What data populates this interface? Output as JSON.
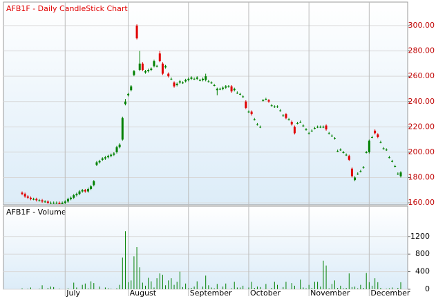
{
  "chart_data": {
    "type": "candlestick",
    "title": "AFB1F - Daily CandleStick Chart",
    "up_color": "#008000",
    "down_color": "#e00000",
    "grid": true,
    "categories": [
      null,
      null,
      null,
      null,
      null,
      null,
      null,
      null,
      null,
      null,
      null,
      null,
      null,
      null,
      null,
      "July",
      null,
      null,
      null,
      null,
      null,
      null,
      null,
      null,
      null,
      null,
      null,
      null,
      null,
      null,
      null,
      null,
      null,
      null,
      null,
      null,
      null,
      "August",
      null,
      null,
      null,
      null,
      null,
      null,
      null,
      null,
      null,
      null,
      null,
      null,
      null,
      null,
      null,
      null,
      null,
      null,
      null,
      null,
      "September",
      null,
      null,
      null,
      null,
      null,
      null,
      null,
      null,
      null,
      null,
      null,
      null,
      null,
      null,
      null,
      null,
      null,
      null,
      null,
      null,
      "October",
      null,
      null,
      null,
      null,
      null,
      null,
      null,
      null,
      null,
      null,
      null,
      null,
      null,
      null,
      null,
      null,
      null,
      null,
      null,
      null,
      "November",
      null,
      null,
      null,
      null,
      null,
      null,
      null,
      null,
      null,
      null,
      null,
      null,
      null,
      null,
      null,
      null,
      null,
      null,
      null,
      null,
      "December",
      null,
      null,
      null,
      null,
      null,
      null,
      null,
      null,
      null,
      null,
      null
    ],
    "open": [
      168,
      167,
      165,
      164,
      163,
      163,
      162,
      162,
      161,
      161,
      160,
      160,
      160,
      160,
      159,
      160,
      161,
      163,
      164,
      166,
      167,
      169,
      170,
      169,
      171,
      174,
      190,
      192,
      194,
      195,
      196,
      197,
      198,
      200,
      204,
      210,
      238,
      245,
      249,
      261,
      300,
      265,
      270,
      263,
      264,
      265,
      268,
      268,
      278,
      270,
      267,
      262,
      258,
      255,
      253,
      255,
      255,
      256,
      257,
      258,
      258,
      258,
      257,
      257,
      257,
      256,
      255,
      253,
      249,
      250,
      250,
      251,
      252,
      252,
      249,
      247,
      246,
      244,
      240,
      232,
      232,
      226,
      222,
      220,
      241,
      242,
      241,
      237,
      236,
      236,
      233,
      229,
      230,
      226,
      224,
      220,
      223,
      224,
      221,
      218,
      215,
      217,
      219,
      220,
      220,
      220,
      221,
      215,
      213,
      211,
      201,
      202,
      200,
      198,
      197,
      187,
      178,
      183,
      185,
      188,
      200,
      200,
      212,
      217,
      214,
      208,
      203,
      202,
      196,
      193,
      189,
      183,
      181
    ],
    "high": [
      169,
      168,
      166,
      165,
      164,
      164,
      163,
      163,
      162,
      162,
      161,
      161,
      161,
      161,
      161,
      162,
      164,
      165,
      167,
      168,
      170,
      171,
      171,
      172,
      174,
      178,
      193,
      194,
      196,
      197,
      198,
      199,
      200,
      205,
      207,
      228,
      242,
      247,
      253,
      265,
      301,
      280,
      271,
      265,
      266,
      267,
      273,
      269,
      280,
      271,
      269,
      263,
      259,
      256,
      255,
      257,
      256,
      258,
      259,
      260,
      259,
      260,
      258,
      259,
      262,
      257,
      256,
      254,
      251,
      251,
      252,
      253,
      253,
      253,
      251,
      248,
      247,
      245,
      241,
      233,
      233,
      227,
      223,
      221,
      242,
      243,
      242,
      238,
      237,
      237,
      234,
      230,
      231,
      227,
      225,
      221,
      224,
      225,
      222,
      219,
      216,
      218,
      220,
      221,
      221,
      221,
      222,
      216,
      214,
      212,
      202,
      203,
      201,
      199,
      198,
      188,
      181,
      184,
      186,
      189,
      201,
      210,
      213,
      218,
      215,
      209,
      204,
      203,
      197,
      194,
      190,
      184,
      185
    ],
    "low": [
      166,
      164,
      163,
      162,
      162,
      161,
      161,
      160,
      160,
      159,
      159,
      159,
      159,
      159,
      159,
      159,
      160,
      162,
      163,
      165,
      166,
      168,
      168,
      168,
      170,
      173,
      189,
      191,
      193,
      194,
      195,
      196,
      197,
      199,
      203,
      209,
      237,
      244,
      248,
      260,
      289,
      264,
      264,
      262,
      263,
      264,
      267,
      267,
      271,
      261,
      266,
      259,
      257,
      251,
      252,
      254,
      254,
      255,
      256,
      257,
      257,
      257,
      256,
      256,
      256,
      255,
      254,
      252,
      245,
      249,
      249,
      250,
      251,
      247,
      248,
      246,
      245,
      243,
      234,
      231,
      229,
      225,
      221,
      219,
      240,
      241,
      239,
      236,
      235,
      235,
      232,
      228,
      226,
      225,
      221,
      214,
      222,
      223,
      220,
      217,
      214,
      216,
      218,
      219,
      219,
      219,
      217,
      214,
      212,
      210,
      200,
      201,
      199,
      197,
      193,
      180,
      177,
      182,
      184,
      187,
      199,
      199,
      211,
      214,
      211,
      207,
      202,
      201,
      195,
      192,
      188,
      182,
      180
    ],
    "close": [
      167,
      165,
      164,
      163,
      163,
      162,
      162,
      161,
      161,
      160,
      160,
      160,
      160,
      159,
      160,
      161,
      163,
      164,
      166,
      167,
      169,
      170,
      169,
      171,
      173,
      177,
      192,
      193,
      195,
      196,
      197,
      198,
      199,
      204,
      206,
      227,
      240,
      246,
      252,
      264,
      290,
      270,
      265,
      264,
      265,
      266,
      272,
      268,
      272,
      262,
      268,
      260,
      258,
      252,
      254,
      256,
      255,
      257,
      258,
      259,
      258,
      259,
      257,
      258,
      260,
      256,
      255,
      253,
      250,
      250,
      251,
      252,
      252,
      248,
      250,
      247,
      246,
      244,
      235,
      232,
      230,
      226,
      222,
      220,
      241,
      242,
      240,
      237,
      236,
      236,
      233,
      229,
      227,
      226,
      222,
      215,
      223,
      224,
      221,
      218,
      215,
      217,
      219,
      220,
      220,
      220,
      218,
      215,
      213,
      211,
      201,
      202,
      200,
      198,
      194,
      181,
      180,
      183,
      185,
      188,
      200,
      209,
      212,
      215,
      212,
      208,
      203,
      202,
      196,
      193,
      189,
      183,
      184
    ],
    "ylim": [
      158.4,
      318.6
    ],
    "yticks": [
      {
        "value": 160,
        "label": "160.00"
      },
      {
        "value": 180,
        "label": "180.00"
      },
      {
        "value": 200,
        "label": "200.00"
      },
      {
        "value": 220,
        "label": "220.00"
      },
      {
        "value": 240,
        "label": "240.00"
      },
      {
        "value": 260,
        "label": "260.00"
      },
      {
        "value": 280,
        "label": "280.00"
      },
      {
        "value": 300,
        "label": "300.00"
      }
    ],
    "volume": {
      "title": "AFB1F - Volume",
      "color": "#008000",
      "values": [
        20,
        0,
        10,
        40,
        0,
        0,
        10,
        90,
        0,
        30,
        60,
        50,
        0,
        10,
        0,
        0,
        20,
        0,
        150,
        40,
        0,
        100,
        130,
        20,
        180,
        140,
        0,
        60,
        0,
        40,
        20,
        10,
        0,
        20,
        100,
        720,
        1320,
        160,
        200,
        750,
        960,
        500,
        150,
        80,
        260,
        180,
        40,
        250,
        360,
        330,
        90,
        200,
        250,
        100,
        170,
        400,
        50,
        130,
        20,
        30,
        60,
        180,
        0,
        60,
        310,
        90,
        40,
        20,
        120,
        0,
        60,
        130,
        0,
        20,
        170,
        40,
        40,
        80,
        0,
        40,
        170,
        30,
        60,
        50,
        0,
        120,
        0,
        30,
        170,
        100,
        0,
        50,
        170,
        0,
        140,
        80,
        0,
        220,
        40,
        20,
        100,
        30,
        170,
        170,
        60,
        650,
        540,
        20,
        120,
        200,
        30,
        80,
        20,
        30,
        360,
        50,
        60,
        20,
        100,
        30,
        370,
        160,
        80,
        250,
        160,
        30,
        0,
        10,
        20,
        40,
        0,
        30,
        160
      ],
      "ylim": [
        0,
        1890
      ],
      "yticks": [
        0,
        400,
        800,
        1200
      ]
    }
  }
}
